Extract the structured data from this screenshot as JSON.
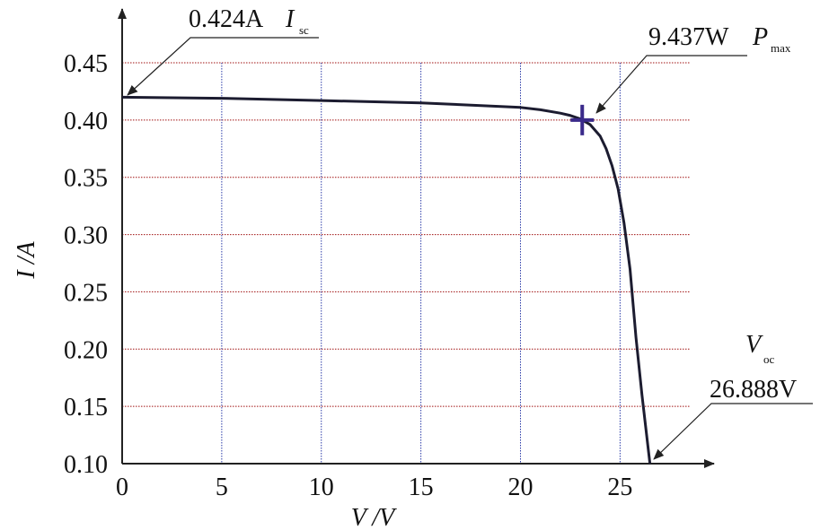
{
  "chart_data": {
    "type": "line",
    "x_label": "V /V",
    "y_label": "I /A",
    "x": [
      0,
      5,
      10,
      15,
      20,
      21,
      22,
      22.5,
      23,
      23.5,
      24,
      24.3,
      24.6,
      24.9,
      25.2,
      25.5,
      25.8,
      26.1,
      26.3,
      26.5
    ],
    "series": [
      {
        "color": "#1c1c30",
        "values": [
          0.42,
          0.419,
          0.417,
          0.415,
          0.411,
          0.409,
          0.406,
          0.404,
          0.401,
          0.396,
          0.386,
          0.375,
          0.36,
          0.34,
          0.31,
          0.27,
          0.21,
          0.16,
          0.13,
          0.1
        ]
      }
    ],
    "marker": {
      "x": 23.1,
      "y": 0.4,
      "color": "#3a2a8a"
    },
    "annotations": [
      {
        "value": "0.424A",
        "symbol": "I",
        "subscript": "sc"
      },
      {
        "value": "9.437W",
        "symbol": "P",
        "subscript": "max"
      },
      {
        "value": "26.888V",
        "symbol": "V",
        "subscript": "oc"
      }
    ],
    "xlim": [
      0,
      28.5
    ],
    "ylim": [
      0.1,
      0.45
    ],
    "xticks": [
      0,
      5,
      10,
      15,
      20,
      25
    ],
    "yticks": [
      {
        "value": 0.1,
        "label": "0.10"
      },
      0.15,
      {
        "value": 0.2,
        "label": "0.20"
      },
      0.25,
      {
        "value": 0.3,
        "label": "0.30"
      },
      0.35,
      {
        "value": 0.4,
        "label": "0.40"
      },
      0.45
    ],
    "grid": true,
    "xgrid_color": "#2a3aa8",
    "ygrid_color": "#a01010"
  }
}
